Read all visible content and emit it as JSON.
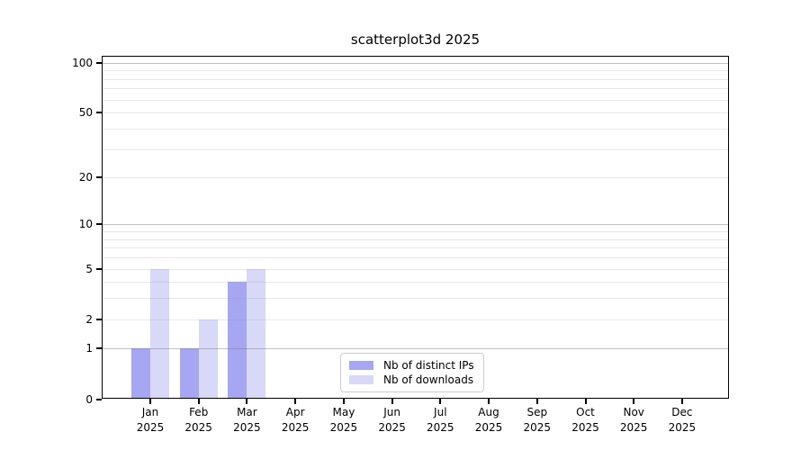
{
  "chart_data": {
    "type": "bar",
    "title": "scatterplot3d 2025",
    "categories": [
      "Jan 2025",
      "Feb 2025",
      "Mar 2025",
      "Apr 2025",
      "May 2025",
      "Jun 2025",
      "Jul 2025",
      "Aug 2025",
      "Sep 2025",
      "Oct 2025",
      "Nov 2025",
      "Dec 2025"
    ],
    "series": [
      {
        "name": "Nb of distinct IPs",
        "color": "#a6a6f2",
        "values": [
          1,
          1,
          4,
          0,
          0,
          0,
          0,
          0,
          0,
          0,
          0,
          0
        ]
      },
      {
        "name": "Nb of downloads",
        "color": "#d8d8f8",
        "values": [
          5,
          2,
          5,
          0,
          0,
          0,
          0,
          0,
          0,
          0,
          0,
          0
        ]
      }
    ],
    "xlabel": "",
    "ylabel": "",
    "yscale": "log10(1+x)",
    "ylim": [
      0,
      110
    ],
    "yticks": [
      {
        "label": "100",
        "value": 100
      },
      {
        "label": "50",
        "value": 50
      },
      {
        "label": "20",
        "value": 20
      },
      {
        "label": "10",
        "value": 10
      },
      {
        "label": "5",
        "value": 5
      },
      {
        "label": "2",
        "value": 2
      },
      {
        "label": "1",
        "value": 1
      },
      {
        "label": "0",
        "value": 0
      }
    ],
    "major_gridlines": [
      1,
      10,
      100
    ],
    "minor_gridlines": [
      2,
      3,
      4,
      5,
      6,
      7,
      8,
      9,
      20,
      30,
      40,
      50,
      60,
      70,
      80,
      90
    ],
    "grid": true,
    "legend_position": "lower center"
  },
  "colors": {
    "distinct_ips_bar": "#a6a6f2",
    "downloads_bar": "#d8d8f8",
    "axis": "#000000",
    "legend_border": "#cccccc",
    "background": "#ffffff"
  }
}
